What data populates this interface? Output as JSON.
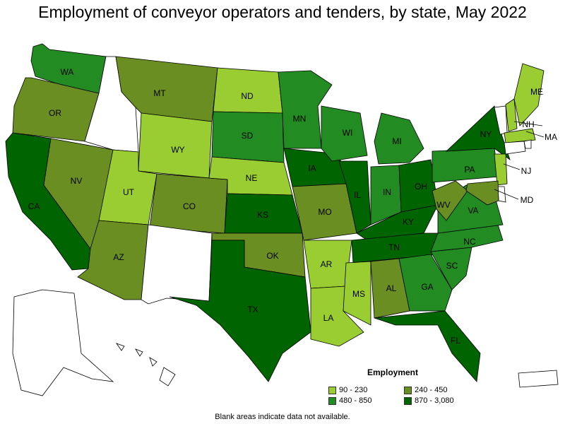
{
  "title": "Employment of conveyor operators and tenders, by state, May 2022",
  "legend": {
    "title": "Employment",
    "bins": [
      {
        "label": "90 - 230",
        "color": "#9acd32"
      },
      {
        "label": "240 - 450",
        "color": "#6b8e23"
      },
      {
        "label": "480 - 850",
        "color": "#228b22"
      },
      {
        "label": "870 - 3,080",
        "color": "#006400"
      }
    ]
  },
  "footnote": "Blank areas indicate data not available.",
  "no_data_color": "#ffffff",
  "states": [
    {
      "abbr": "WA",
      "bin": 2
    },
    {
      "abbr": "OR",
      "bin": 1
    },
    {
      "abbr": "CA",
      "bin": 3
    },
    {
      "abbr": "NV",
      "bin": 1
    },
    {
      "abbr": "ID",
      "bin": null
    },
    {
      "abbr": "MT",
      "bin": 1
    },
    {
      "abbr": "WY",
      "bin": 0
    },
    {
      "abbr": "UT",
      "bin": 0
    },
    {
      "abbr": "AZ",
      "bin": 1
    },
    {
      "abbr": "CO",
      "bin": 1
    },
    {
      "abbr": "NM",
      "bin": null
    },
    {
      "abbr": "ND",
      "bin": 0
    },
    {
      "abbr": "SD",
      "bin": 2
    },
    {
      "abbr": "NE",
      "bin": 0
    },
    {
      "abbr": "KS",
      "bin": 3
    },
    {
      "abbr": "OK",
      "bin": 1
    },
    {
      "abbr": "TX",
      "bin": 3
    },
    {
      "abbr": "MN",
      "bin": 2
    },
    {
      "abbr": "IA",
      "bin": 3
    },
    {
      "abbr": "MO",
      "bin": 1
    },
    {
      "abbr": "AR",
      "bin": 0
    },
    {
      "abbr": "LA",
      "bin": 0
    },
    {
      "abbr": "WI",
      "bin": 2
    },
    {
      "abbr": "IL",
      "bin": 3
    },
    {
      "abbr": "MI",
      "bin": 2
    },
    {
      "abbr": "IN",
      "bin": 2
    },
    {
      "abbr": "OH",
      "bin": 3
    },
    {
      "abbr": "KY",
      "bin": 3
    },
    {
      "abbr": "TN",
      "bin": 3
    },
    {
      "abbr": "MS",
      "bin": 0
    },
    {
      "abbr": "AL",
      "bin": 1
    },
    {
      "abbr": "GA",
      "bin": 2
    },
    {
      "abbr": "FL",
      "bin": 3
    },
    {
      "abbr": "SC",
      "bin": 2
    },
    {
      "abbr": "NC",
      "bin": 2
    },
    {
      "abbr": "VA",
      "bin": 2
    },
    {
      "abbr": "WV",
      "bin": 1
    },
    {
      "abbr": "PA",
      "bin": 2
    },
    {
      "abbr": "NY",
      "bin": 3
    },
    {
      "abbr": "VT",
      "bin": null
    },
    {
      "abbr": "NH",
      "bin": 0
    },
    {
      "abbr": "ME",
      "bin": 0
    },
    {
      "abbr": "MA",
      "bin": 0
    },
    {
      "abbr": "RI",
      "bin": null
    },
    {
      "abbr": "CT",
      "bin": null
    },
    {
      "abbr": "NJ",
      "bin": 0
    },
    {
      "abbr": "DE",
      "bin": null
    },
    {
      "abbr": "MD",
      "bin": 1
    },
    {
      "abbr": "AK",
      "bin": null
    },
    {
      "abbr": "HI",
      "bin": null
    },
    {
      "abbr": "PR",
      "bin": null
    }
  ]
}
